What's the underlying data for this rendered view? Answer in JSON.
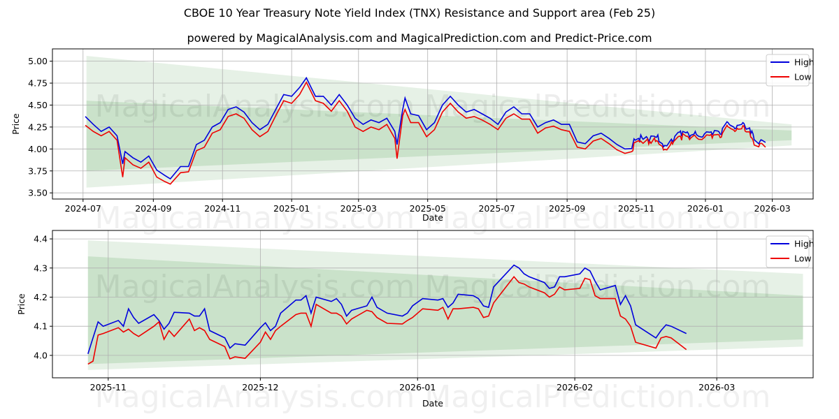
{
  "title": "CBOE 10 Year Treasury Note Yield Index (TNX) Resistance and Support area (Feb 25)",
  "subtitle": "powered by MagicalAnalysis.com and MagicalPrediction.com and Predict-Price.com",
  "watermark": "MagicalAnalysis.com    MagicalPrediction.com",
  "colors": {
    "high": "#0000dd",
    "low": "#ee0000",
    "band": "#2e8b2e",
    "grid": "#b0b0b0"
  },
  "chart_data": [
    {
      "type": "line",
      "id": "full",
      "xlabel": "Date",
      "ylabel": "Price",
      "xlim": [
        "2024-06-04",
        "2026-04-06"
      ],
      "ylim": [
        3.43,
        5.14
      ],
      "xticks": [
        "2024-07",
        "2024-09",
        "2024-11",
        "2025-01",
        "2025-03",
        "2025-05",
        "2025-07",
        "2025-09",
        "2025-11",
        "2026-01",
        "2026-03"
      ],
      "yticks": [
        "3.50",
        "3.75",
        "4.00",
        "4.25",
        "4.50",
        "4.75",
        "5.00"
      ],
      "legend": {
        "position": "top-right",
        "entries": [
          "High",
          "Low"
        ]
      },
      "grid": true,
      "start_date": "2024-07-01",
      "bands": [
        {
          "name": "outer",
          "x": [
            "2024-07-04",
            "2026-03-18"
          ],
          "upper": [
            5.06,
            4.28
          ],
          "lower": [
            3.56,
            4.04
          ],
          "opacity": 0.12
        },
        {
          "name": "inner",
          "x": [
            "2024-07-04",
            "2026-03-18"
          ],
          "upper": [
            4.55,
            4.21
          ],
          "lower": [
            3.75,
            4.1
          ],
          "opacity": 0.15
        }
      ]
    },
    {
      "type": "line",
      "id": "zoom",
      "xlabel": "Date",
      "ylabel": "Price",
      "xlim": [
        "2025-10-21",
        "2026-03-20"
      ],
      "ylim": [
        3.923,
        4.429
      ],
      "xticks": [
        "2025-11",
        "2025-12",
        "2026-01",
        "2026-02",
        "2026-03"
      ],
      "yticks": [
        "4.0",
        "4.1",
        "4.2",
        "4.3",
        "4.4"
      ],
      "legend": {
        "position": "top-right",
        "entries": [
          "High",
          "Low"
        ]
      },
      "grid": true,
      "start_date": "2025-10-28",
      "bands": [
        {
          "name": "outer",
          "x": [
            "2025-10-28",
            "2026-03-18"
          ],
          "upper": [
            4.395,
            4.28
          ],
          "lower": [
            3.95,
            4.03
          ],
          "opacity": 0.12
        },
        {
          "name": "inner",
          "x": [
            "2025-10-28",
            "2026-03-18"
          ],
          "upper": [
            4.34,
            4.205
          ],
          "lower": [
            3.97,
            4.055
          ],
          "opacity": 0.15
        }
      ]
    }
  ],
  "series": {
    "dates": [
      "2024-07-03",
      "2024-07-10",
      "2024-07-17",
      "2024-07-24",
      "2024-07-31",
      "2024-08-05",
      "2024-08-07",
      "2024-08-14",
      "2024-08-21",
      "2024-08-28",
      "2024-09-04",
      "2024-09-11",
      "2024-09-16",
      "2024-09-25",
      "2024-10-02",
      "2024-10-09",
      "2024-10-16",
      "2024-10-23",
      "2024-10-30",
      "2024-11-06",
      "2024-11-13",
      "2024-11-20",
      "2024-11-27",
      "2024-12-04",
      "2024-12-11",
      "2024-12-18",
      "2024-12-25",
      "2025-01-01",
      "2025-01-08",
      "2025-01-14",
      "2025-01-22",
      "2025-01-29",
      "2025-02-05",
      "2025-02-12",
      "2025-02-19",
      "2025-02-26",
      "2025-03-05",
      "2025-03-12",
      "2025-03-19",
      "2025-03-26",
      "2025-04-02",
      "2025-04-04",
      "2025-04-09",
      "2025-04-11",
      "2025-04-16",
      "2025-04-23",
      "2025-04-30",
      "2025-05-07",
      "2025-05-14",
      "2025-05-21",
      "2025-05-28",
      "2025-06-04",
      "2025-06-11",
      "2025-06-18",
      "2025-06-25",
      "2025-07-02",
      "2025-07-09",
      "2025-07-16",
      "2025-07-23",
      "2025-07-30",
      "2025-08-06",
      "2025-08-13",
      "2025-08-20",
      "2025-08-27",
      "2025-09-03",
      "2025-09-10",
      "2025-09-17",
      "2025-09-24",
      "2025-10-01",
      "2025-10-08",
      "2025-10-15",
      "2025-10-22",
      "2025-10-28",
      "2025-10-29",
      "2025-10-30",
      "2025-10-31",
      "2025-11-03",
      "2025-11-04",
      "2025-11-05",
      "2025-11-06",
      "2025-11-07",
      "2025-11-10",
      "2025-11-11",
      "2025-11-12",
      "2025-11-13",
      "2025-11-14",
      "2025-11-17",
      "2025-11-18",
      "2025-11-19",
      "2025-11-20",
      "2025-11-21",
      "2025-11-24",
      "2025-11-25",
      "2025-11-26",
      "2025-11-28",
      "2025-12-01",
      "2025-12-02",
      "2025-12-03",
      "2025-12-04",
      "2025-12-05",
      "2025-12-08",
      "2025-12-09",
      "2025-12-10",
      "2025-12-11",
      "2025-12-12",
      "2025-12-15",
      "2025-12-16",
      "2025-12-17",
      "2025-12-18",
      "2025-12-19",
      "2025-12-22",
      "2025-12-23",
      "2025-12-24",
      "2025-12-26",
      "2025-12-29",
      "2025-12-30",
      "2025-12-31",
      "2026-01-02",
      "2026-01-05",
      "2026-01-06",
      "2026-01-07",
      "2026-01-08",
      "2026-01-09",
      "2026-01-12",
      "2026-01-13",
      "2026-01-14",
      "2026-01-15",
      "2026-01-16",
      "2026-01-20",
      "2026-01-21",
      "2026-01-22",
      "2026-01-23",
      "2026-01-26",
      "2026-01-27",
      "2026-01-28",
      "2026-01-29",
      "2026-01-30",
      "2026-02-02",
      "2026-02-03",
      "2026-02-04",
      "2026-02-05",
      "2026-02-06",
      "2026-02-09",
      "2026-02-10",
      "2026-02-11",
      "2026-02-12",
      "2026-02-13",
      "2026-02-17",
      "2026-02-18",
      "2026-02-19",
      "2026-02-20",
      "2026-02-23"
    ],
    "high": [
      4.37,
      4.28,
      4.2,
      4.25,
      4.15,
      3.83,
      3.97,
      3.9,
      3.85,
      3.92,
      3.76,
      3.7,
      3.66,
      3.8,
      3.8,
      4.05,
      4.1,
      4.25,
      4.3,
      4.45,
      4.48,
      4.42,
      4.3,
      4.22,
      4.28,
      4.45,
      4.62,
      4.6,
      4.7,
      4.81,
      4.6,
      4.6,
      4.5,
      4.62,
      4.5,
      4.35,
      4.28,
      4.33,
      4.3,
      4.35,
      4.2,
      4.05,
      4.45,
      4.58,
      4.4,
      4.38,
      4.22,
      4.3,
      4.5,
      4.6,
      4.5,
      4.42,
      4.45,
      4.4,
      4.35,
      4.28,
      4.42,
      4.48,
      4.4,
      4.4,
      4.25,
      4.3,
      4.33,
      4.28,
      4.28,
      4.08,
      4.06,
      4.15,
      4.18,
      4.12,
      4.05,
      4.0,
      4.005,
      4.06,
      4.115,
      4.1,
      4.12,
      4.1,
      4.16,
      4.13,
      4.11,
      4.14,
      4.12,
      4.09,
      4.11,
      4.148,
      4.145,
      4.135,
      4.135,
      4.16,
      4.085,
      4.06,
      4.025,
      4.04,
      4.035,
      4.095,
      4.112,
      4.085,
      4.1,
      4.145,
      4.19,
      4.19,
      4.205,
      4.145,
      4.2,
      4.185,
      4.195,
      4.175,
      4.135,
      4.155,
      4.17,
      4.2,
      4.165,
      4.145,
      4.135,
      4.145,
      4.17,
      4.195,
      4.19,
      4.195,
      4.165,
      4.18,
      4.21,
      4.205,
      4.195,
      4.17,
      4.165,
      4.235,
      4.31,
      4.3,
      4.28,
      4.27,
      4.25,
      4.23,
      4.235,
      4.27,
      4.27,
      4.28,
      4.3,
      4.29,
      4.255,
      4.225,
      4.24,
      4.175,
      4.205,
      4.17,
      4.105,
      4.06,
      4.085,
      4.105,
      4.1,
      4.075
    ],
    "low": [
      4.27,
      4.2,
      4.15,
      4.2,
      4.1,
      3.68,
      3.9,
      3.82,
      3.78,
      3.85,
      3.68,
      3.63,
      3.6,
      3.73,
      3.74,
      3.98,
      4.02,
      4.18,
      4.22,
      4.37,
      4.4,
      4.35,
      4.22,
      4.14,
      4.2,
      4.38,
      4.55,
      4.52,
      4.62,
      4.76,
      4.55,
      4.52,
      4.43,
      4.55,
      4.43,
      4.25,
      4.2,
      4.25,
      4.22,
      4.28,
      4.12,
      3.89,
      4.38,
      4.45,
      4.3,
      4.3,
      4.14,
      4.22,
      4.42,
      4.52,
      4.42,
      4.35,
      4.37,
      4.33,
      4.28,
      4.22,
      4.35,
      4.4,
      4.34,
      4.34,
      4.18,
      4.24,
      4.26,
      4.22,
      4.2,
      4.02,
      4.0,
      4.09,
      4.12,
      4.06,
      3.99,
      3.95,
      3.97,
      3.98,
      4.07,
      4.075,
      4.095,
      4.08,
      4.09,
      4.075,
      4.065,
      4.1,
      4.115,
      4.055,
      4.085,
      4.065,
      4.125,
      4.085,
      4.095,
      4.085,
      4.055,
      4.03,
      3.988,
      3.995,
      3.99,
      4.045,
      4.08,
      4.055,
      4.085,
      4.1,
      4.14,
      4.145,
      4.145,
      4.1,
      4.175,
      4.145,
      4.145,
      4.135,
      4.108,
      4.125,
      4.155,
      4.15,
      4.13,
      4.11,
      4.108,
      4.12,
      4.13,
      4.16,
      4.155,
      4.165,
      4.125,
      4.16,
      4.16,
      4.165,
      4.16,
      4.13,
      4.135,
      4.18,
      4.27,
      4.25,
      4.245,
      4.235,
      4.215,
      4.2,
      4.21,
      4.235,
      4.225,
      4.23,
      4.265,
      4.26,
      4.205,
      4.195,
      4.195,
      4.135,
      4.125,
      4.1,
      4.045,
      4.025,
      4.06,
      4.065,
      4.06,
      4.02
    ]
  }
}
